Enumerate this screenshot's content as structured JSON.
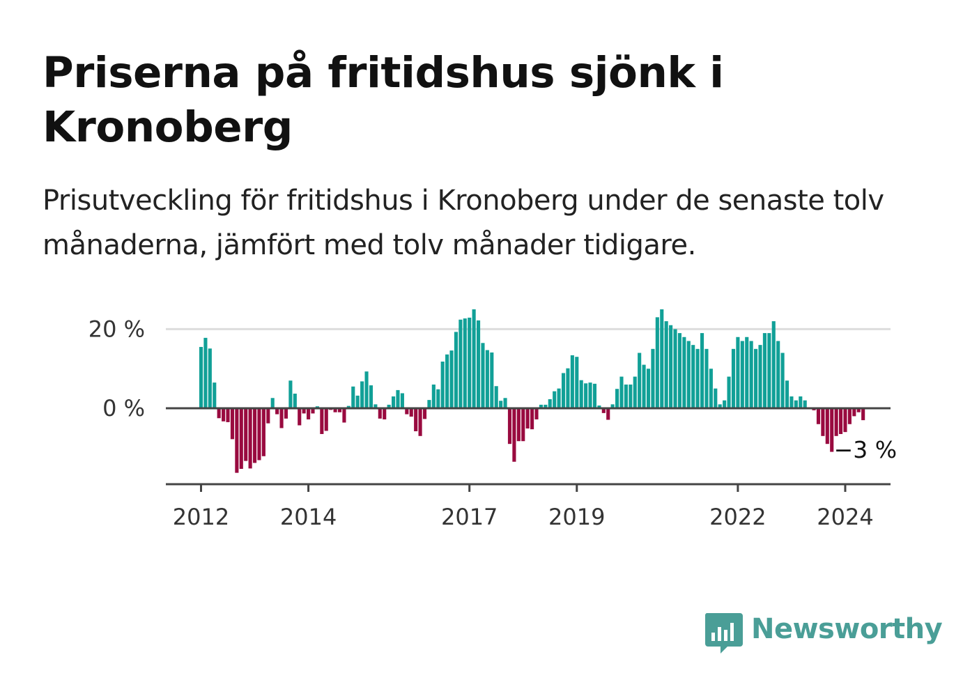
{
  "title": "Priserna på fritidshus sjönk i Kronoberg",
  "subtitle": "Prisutveckling för fritidshus i Kronoberg under de senaste tolv månaderna, jämfört med tolv månader tidigare.",
  "brand": {
    "name": "Newsworthy",
    "color": "#4a9e97",
    "icon": "bar-chart-bubble-icon"
  },
  "colors": {
    "positive": "#11a097",
    "negative": "#990a3f",
    "grid": "#dddddd",
    "axis": "#444444",
    "label": "#333333"
  },
  "chart_data": {
    "type": "bar",
    "start": "2012-01",
    "frequency": "monthly",
    "ylim": [
      -19,
      25
    ],
    "yticks": [
      {
        "value": 0,
        "label": "0 %"
      },
      {
        "value": 20,
        "label": "20 %"
      }
    ],
    "xticks": [
      {
        "date": "2012-01",
        "label": "2012"
      },
      {
        "date": "2014-01",
        "label": "2014"
      },
      {
        "date": "2017-01",
        "label": "2017"
      },
      {
        "date": "2019-01",
        "label": "2019"
      },
      {
        "date": "2022-01",
        "label": "2022"
      },
      {
        "date": "2024-01",
        "label": "2024"
      }
    ],
    "annotation": {
      "text": "−3 %",
      "value": -3
    },
    "values": [
      15.5,
      17.8,
      15.1,
      6.5,
      -2.5,
      -3.3,
      -3.5,
      -7.8,
      -16.3,
      -15.3,
      -13.3,
      -15.2,
      -13.8,
      -13.1,
      -12.1,
      -3.8,
      2.6,
      -1.5,
      -5,
      -2.6,
      7,
      3.7,
      -4.3,
      -1.3,
      -2.8,
      -1.3,
      0.5,
      -6.5,
      -5.7,
      -0.4,
      -1,
      -1,
      -3.6,
      0.6,
      5.5,
      3.2,
      6.8,
      9.3,
      5.8,
      1,
      -2.6,
      -2.8,
      0.9,
      3,
      4.6,
      3.8,
      -1.5,
      -2.1,
      -5.8,
      -7,
      -2.7,
      2.1,
      6,
      4.8,
      11.8,
      13.6,
      14.6,
      19.3,
      22.4,
      22.7,
      22.9,
      25,
      22.2,
      16.5,
      14.7,
      14.1,
      5.6,
      1.9,
      2.6,
      -9,
      -13.5,
      -8.3,
      -8.3,
      -5.1,
      -5.3,
      -2.8,
      0.9,
      0.9,
      2.3,
      4.3,
      5,
      8.9,
      10.1,
      13.4,
      13,
      7.1,
      6.3,
      6.5,
      6.2,
      0.7,
      -1.2,
      -2.9,
      1,
      4.9,
      8,
      6,
      6,
      8,
      14,
      11,
      10,
      15,
      23,
      25,
      22,
      21,
      20,
      19,
      18,
      17,
      16,
      15,
      19,
      15,
      10,
      5,
      1,
      2,
      8,
      15,
      18,
      17,
      18,
      17,
      15,
      16,
      19,
      19,
      22,
      17,
      14,
      7,
      3,
      2,
      3,
      2,
      0,
      -0.5,
      -4,
      -7,
      -9,
      -11,
      -7,
      -6.5,
      -6,
      -4,
      -2,
      -1,
      -3
    ]
  }
}
